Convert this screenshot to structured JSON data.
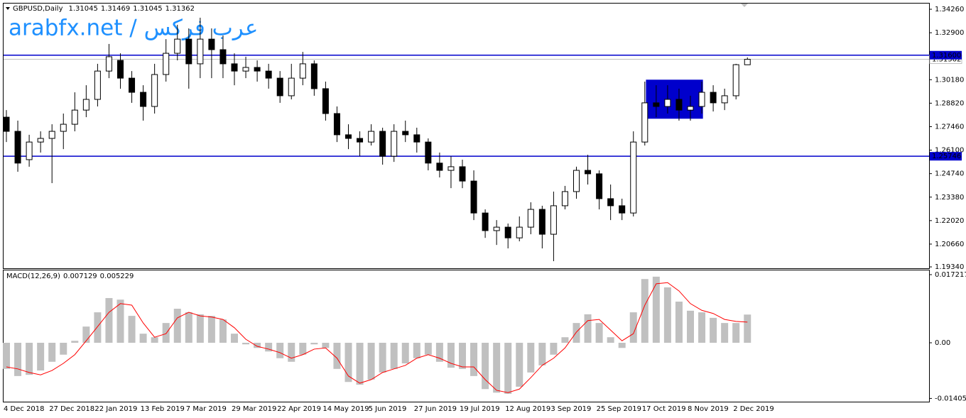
{
  "chart_data": [
    {
      "type": "candlestick",
      "symbol": "GBPUSD,Daily",
      "watermark": "arabfx.net / عرب فركس",
      "watermark_color": "#1e90ff",
      "categories": [
        "4 Dec 2018",
        null,
        null,
        null,
        "27 Dec 2018",
        null,
        null,
        null,
        "22 Jan 2019",
        null,
        null,
        null,
        "13 Feb 2019",
        null,
        null,
        null,
        "7 Mar 2019",
        null,
        null,
        null,
        "29 Mar 2019",
        null,
        null,
        null,
        "22 Apr 2019",
        null,
        null,
        null,
        "14 May 2019",
        null,
        null,
        null,
        "5 Jun 2019",
        null,
        null,
        null,
        "27 Jun 2019",
        null,
        null,
        null,
        "19 Jul 2019",
        null,
        null,
        null,
        "12 Aug 2019",
        null,
        null,
        null,
        "3 Sep 2019",
        null,
        null,
        null,
        "25 Sep 2019",
        null,
        null,
        null,
        "17 Oct 2019",
        null,
        null,
        null,
        "8 Nov 2019",
        null,
        null,
        null,
        "2 Dec 2019",
        null
      ],
      "open": [
        1.2801,
        1.2719,
        1.2555,
        1.2657,
        1.2678,
        1.2719,
        1.276,
        1.2842,
        1.2904,
        1.3068,
        1.313,
        1.3027,
        1.2945,
        1.2863,
        1.3048,
        1.3171,
        1.3253,
        1.311,
        1.3253,
        1.3192,
        1.311,
        1.3068,
        1.3089,
        1.3068,
        1.3027,
        1.2925,
        1.3027,
        1.311,
        1.2966,
        1.2822,
        1.2699,
        1.2678,
        1.2657,
        1.2719,
        1.2575,
        1.2719,
        1.2699,
        1.2657,
        1.2535,
        1.2493,
        1.2514,
        1.2431,
        1.2246,
        1.2144,
        1.2164,
        1.2102,
        1.2164,
        1.2267,
        1.2123,
        1.2288,
        1.237,
        1.2493,
        1.2473,
        1.2329,
        1.2288,
        1.2246,
        1.2657,
        1.2884,
        1.2863,
        1.2904,
        1.2842,
        1.2863,
        1.2945,
        1.2884,
        1.2925,
        1.31045
      ],
      "high": [
        1.2842,
        1.2781,
        1.2699,
        1.2719,
        1.276,
        1.2822,
        1.2945,
        1.2986,
        1.311,
        1.3225,
        1.3171,
        1.3068,
        1.2986,
        1.311,
        1.3253,
        1.3336,
        1.3315,
        1.3377,
        1.3315,
        1.3274,
        1.3171,
        1.3151,
        1.313,
        1.311,
        1.3068,
        1.311,
        1.3179,
        1.313,
        1.3007,
        1.2863,
        1.276,
        1.2719,
        1.276,
        1.274,
        1.276,
        1.2781,
        1.274,
        1.2678,
        1.2596,
        1.2575,
        1.2555,
        1.2493,
        1.2267,
        1.2205,
        1.2185,
        1.2226,
        1.2308,
        1.2288,
        1.237,
        1.2403,
        1.2514,
        1.2583,
        1.2493,
        1.2411,
        1.2329,
        1.2719,
        1.3007,
        1.2986,
        1.2986,
        1.2966,
        1.2925,
        1.3007,
        1.2986,
        1.2966,
        1.311,
        1.31469
      ],
      "low": [
        1.2657,
        1.2485,
        1.2514,
        1.2596,
        1.2419,
        1.2616,
        1.2719,
        1.2801,
        1.2863,
        1.3027,
        1.2966,
        1.2884,
        1.2781,
        1.2822,
        1.3007,
        1.313,
        1.2966,
        1.3027,
        1.3027,
        1.3027,
        1.2986,
        1.3027,
        1.3007,
        1.2966,
        1.2884,
        1.2904,
        1.2986,
        1.2925,
        1.2781,
        1.2657,
        1.2616,
        1.2575,
        1.2637,
        1.2526,
        1.2542,
        1.2657,
        1.2596,
        1.2493,
        1.2452,
        1.239,
        1.239,
        1.2205,
        1.2102,
        1.2061,
        1.2041,
        1.2082,
        1.2123,
        1.2041,
        1.1967,
        1.2267,
        1.2329,
        1.2411,
        1.2267,
        1.2205,
        1.2205,
        1.2226,
        1.2637,
        1.2801,
        1.2822,
        1.2781,
        1.2781,
        1.2822,
        1.2834,
        1.2842,
        1.2904,
        1.31045
      ],
      "close": [
        1.2719,
        1.2535,
        1.2657,
        1.2678,
        1.2719,
        1.276,
        1.2842,
        1.2904,
        1.3068,
        1.3151,
        1.3027,
        1.2945,
        1.2863,
        1.3048,
        1.3171,
        1.3253,
        1.311,
        1.3253,
        1.3192,
        1.311,
        1.3068,
        1.3089,
        1.3068,
        1.3027,
        1.2925,
        1.3027,
        1.311,
        1.2966,
        1.2822,
        1.2699,
        1.2678,
        1.2657,
        1.2719,
        1.2575,
        1.2719,
        1.2699,
        1.2657,
        1.2535,
        1.2493,
        1.2514,
        1.2431,
        1.2246,
        1.2144,
        1.2164,
        1.2102,
        1.2164,
        1.2267,
        1.2123,
        1.2288,
        1.237,
        1.2493,
        1.2473,
        1.2329,
        1.2288,
        1.2246,
        1.2657,
        1.2884,
        1.2863,
        1.2904,
        1.2842,
        1.2863,
        1.2945,
        1.2884,
        1.2925,
        1.3105,
        1.31362
      ],
      "candle_color": "#000000",
      "ylim": [
        1.1926,
        1.3459
      ],
      "yticks": [
        {
          "value": 1.3426,
          "label": "1.34260"
        },
        {
          "value": 1.329,
          "label": "1.32900"
        },
        {
          "value": 1.3018,
          "label": "1.30180"
        },
        {
          "value": 1.2882,
          "label": "1.28820"
        },
        {
          "value": 1.2746,
          "label": "1.27460"
        },
        {
          "value": 1.261,
          "label": "1.26100"
        },
        {
          "value": 1.2474,
          "label": "1.24740"
        },
        {
          "value": 1.2338,
          "label": "1.23380"
        },
        {
          "value": 1.2202,
          "label": "1.22020"
        },
        {
          "value": 1.2066,
          "label": "1.20660"
        },
        {
          "value": 1.1934,
          "label": "1.19340"
        }
      ],
      "hlines": [
        {
          "value": 1.316,
          "label": "1.31600",
          "color": "#0000cc"
        },
        {
          "value": 1.25746,
          "label": "1.25746",
          "color": "#0000cc"
        }
      ],
      "bid_line_color": "#c0c0c0",
      "zone": {
        "xlim": [
          56.1,
          61.1
        ],
        "ylim": [
          1.2792,
          1.3018
        ],
        "color": "#0000cc"
      }
    },
    {
      "type": "macd",
      "title": "MACD(12,26,9)",
      "histogram": {
        "color": "#c0c0c0",
        "values": [
          -0.0066,
          -0.0084,
          -0.0081,
          -0.007,
          -0.0048,
          -0.003,
          0.0005,
          0.0041,
          0.0077,
          0.0113,
          0.0109,
          0.0068,
          0.0023,
          0.0014,
          0.005,
          0.0086,
          0.0077,
          0.0072,
          0.0068,
          0.0059,
          0.0023,
          -0.0004,
          -0.0013,
          -0.0022,
          -0.0039,
          -0.0048,
          -0.003,
          -0.0004,
          -0.0013,
          -0.0066,
          -0.0099,
          -0.0106,
          -0.0093,
          -0.0075,
          -0.0066,
          -0.0052,
          -0.0039,
          -0.003,
          -0.0048,
          -0.0063,
          -0.0066,
          -0.0084,
          -0.0117,
          -0.0126,
          -0.0129,
          -0.0111,
          -0.0075,
          -0.0057,
          -0.003,
          0.0014,
          0.005,
          0.0072,
          0.005,
          0.0014,
          -0.0013,
          0.0077,
          0.0161,
          0.0167,
          0.014,
          0.0104,
          0.0081,
          0.0077,
          0.0063,
          0.005,
          0.005,
          0.007129
        ]
      },
      "signal": {
        "color": "#ff0000",
        "values": [
          -0.0061,
          -0.0066,
          -0.0075,
          -0.0081,
          -0.007,
          -0.0052,
          -0.003,
          0.0005,
          0.0041,
          0.0077,
          0.0099,
          0.0095,
          0.005,
          0.0014,
          0.0023,
          0.0063,
          0.0077,
          0.0068,
          0.0065,
          0.0059,
          0.0038,
          0.0009,
          -0.0009,
          -0.0016,
          -0.0025,
          -0.0039,
          -0.003,
          -0.0016,
          -0.0013,
          -0.0039,
          -0.0084,
          -0.0102,
          -0.0093,
          -0.0075,
          -0.0066,
          -0.0057,
          -0.0039,
          -0.003,
          -0.0039,
          -0.0052,
          -0.0061,
          -0.0061,
          -0.0093,
          -0.012,
          -0.0126,
          -0.0117,
          -0.0088,
          -0.0057,
          -0.0039,
          -0.0013,
          0.0027,
          0.0056,
          0.0059,
          0.0032,
          0.0005,
          0.0023,
          0.0095,
          0.0149,
          0.0152,
          0.0131,
          0.0099,
          0.0082,
          0.0074,
          0.0059,
          0.0054,
          0.005229
        ]
      },
      "ylim": [
        -0.01488,
        0.01829
      ],
      "yticks": [
        0.017217,
        {
          "value": 0,
          "label": "0.00"
        },
        -0.014057
      ]
    }
  ]
}
